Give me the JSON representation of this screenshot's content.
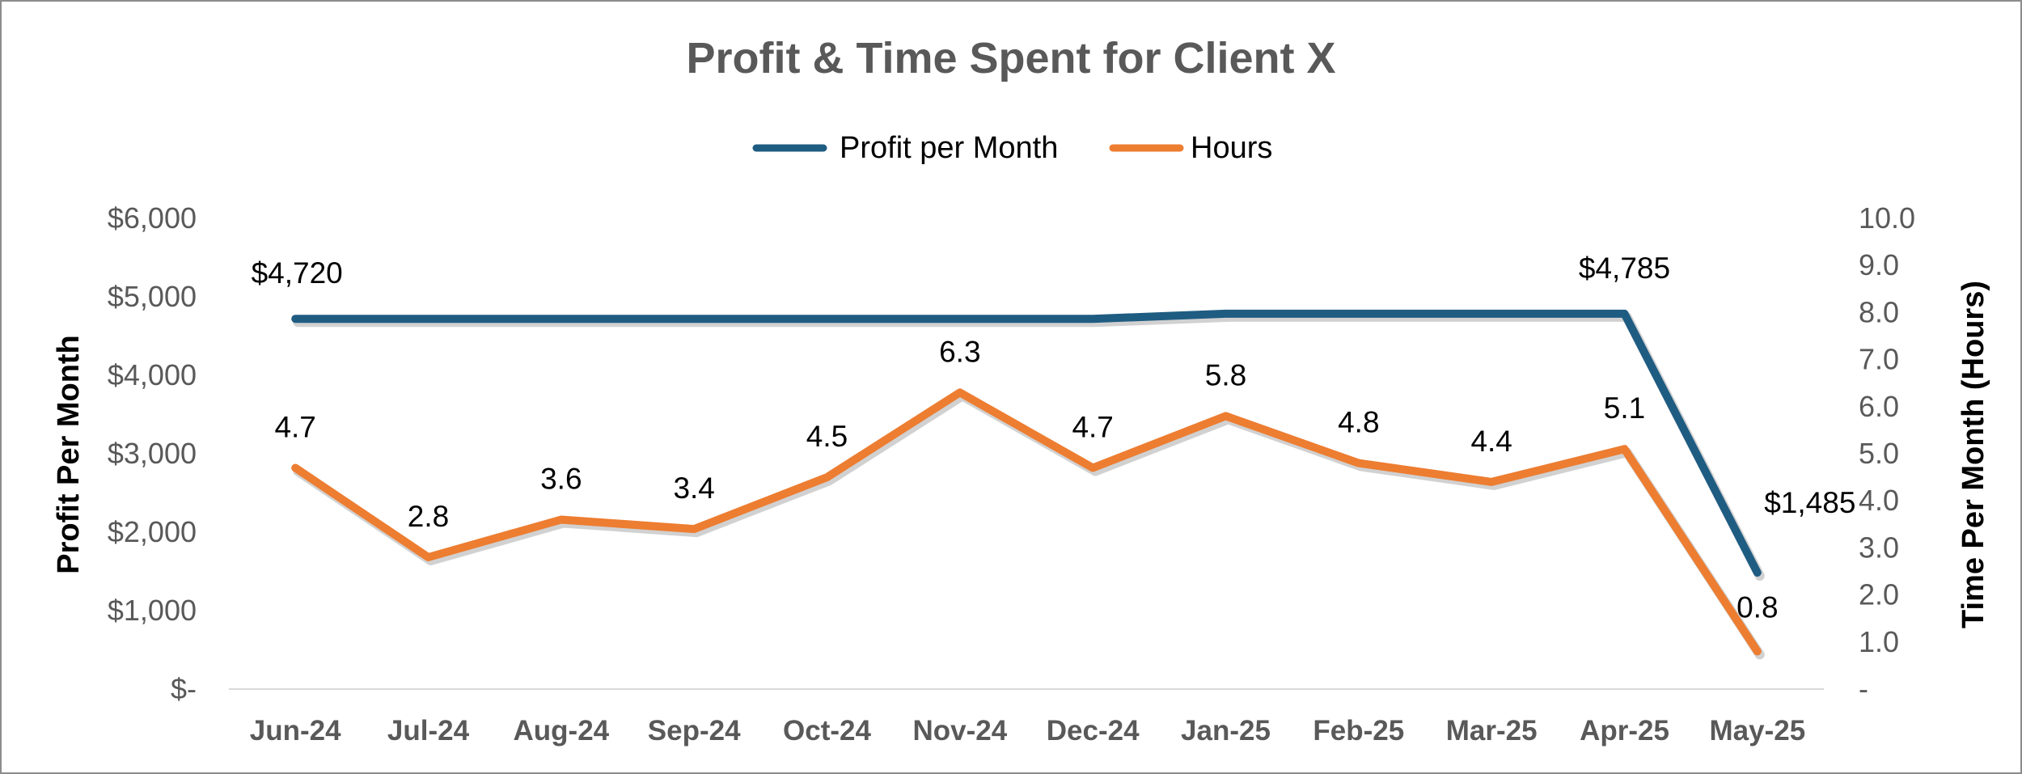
{
  "chart_data": {
    "type": "line",
    "title": "Profit & Time Spent for Client X",
    "categories": [
      "Jun-24",
      "Jul-24",
      "Aug-24",
      "Sep-24",
      "Oct-24",
      "Nov-24",
      "Dec-24",
      "Jan-25",
      "Feb-25",
      "Mar-25",
      "Apr-25",
      "May-25"
    ],
    "series": [
      {
        "name": "Profit per Month",
        "axis": "left",
        "color": "#1f5c82",
        "values": [
          4720,
          4720,
          4720,
          4720,
          4720,
          4720,
          4720,
          4785,
          4785,
          4785,
          4785,
          1485
        ],
        "data_labels": [
          "$4,720",
          "",
          "",
          "",
          "",
          "",
          "",
          "",
          "",
          "",
          "$4,785",
          "$1,485"
        ]
      },
      {
        "name": "Hours",
        "axis": "right",
        "color": "#ed7d31",
        "values": [
          4.7,
          2.8,
          3.6,
          3.4,
          4.5,
          6.3,
          4.7,
          5.8,
          4.8,
          4.4,
          5.1,
          0.8
        ],
        "data_labels": [
          "4.7",
          "2.8",
          "3.6",
          "3.4",
          "4.5",
          "6.3",
          "4.7",
          "5.8",
          "4.8",
          "4.4",
          "5.1",
          "0.8"
        ]
      }
    ],
    "y_left": {
      "label": "Profit Per Month",
      "ylim": [
        0,
        6000
      ],
      "tick_labels": [
        "$-",
        "$1,000",
        "$2,000",
        "$3,000",
        "$4,000",
        "$5,000",
        "$6,000"
      ]
    },
    "y_right": {
      "label": "Time Per Month (Hours)",
      "ylim": [
        0,
        10
      ],
      "tick_labels": [
        "-",
        "1.0",
        "2.0",
        "3.0",
        "4.0",
        "5.0",
        "6.0",
        "7.0",
        "8.0",
        "9.0",
        "10.0"
      ]
    },
    "grid": false,
    "legend_position": "top"
  }
}
